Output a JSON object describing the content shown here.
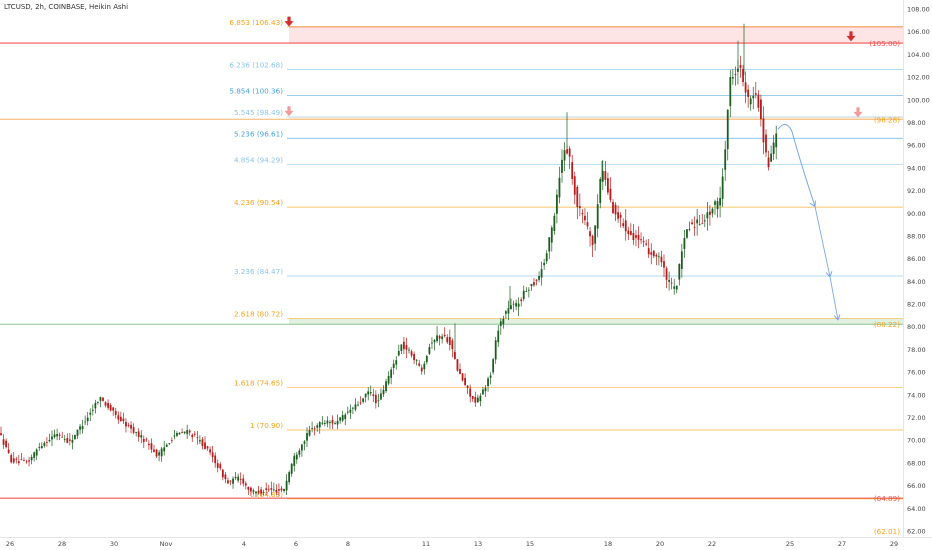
{
  "header": {
    "title": "LTCUSD, 2h, COINBASE, Heikin Ashi"
  },
  "colors": {
    "up": "#26a69a",
    "up_dark": "#1b5e20",
    "down": "#b71c1c",
    "fib_orange": "#f7a21b",
    "fib_blue": "#4aa3df",
    "fib_lightblue": "#8cc4ec",
    "red_level": "#ef5350",
    "projection": "#7aa7e6"
  },
  "chart_data": {
    "type": "candlestick",
    "title": "LTCUSD, 2h, COINBASE, Heikin Ashi",
    "ylim": [
      61.2,
      108.6
    ],
    "y_ticks": [
      "108.00",
      "106.00",
      "104.00",
      "102.00",
      "100.00",
      "98.00",
      "96.00",
      "94.00",
      "92.00",
      "90.00",
      "88.00",
      "86.00",
      "84.00",
      "82.00",
      "80.00",
      "78.00",
      "76.00",
      "74.00",
      "72.00",
      "70.00",
      "68.00",
      "66.00",
      "64.00",
      "62.00"
    ],
    "x_tick_labels": [
      {
        "label": "26",
        "idx": 10
      },
      {
        "label": "28",
        "idx": 62
      },
      {
        "label": "30",
        "idx": 114
      },
      {
        "label": "Nov",
        "idx": 166
      },
      {
        "label": "4",
        "idx": 244
      },
      {
        "label": "6",
        "idx": 296
      },
      {
        "label": "8",
        "idx": 348
      },
      {
        "label": "11",
        "idx": 426
      },
      {
        "label": "13",
        "idx": 478
      },
      {
        "label": "15",
        "idx": 530
      },
      {
        "label": "18",
        "idx": 608
      },
      {
        "label": "20",
        "idx": 660
      },
      {
        "label": "22",
        "idx": 712
      },
      {
        "label": "25",
        "idx": 790
      },
      {
        "label": "27",
        "idx": 842
      },
      {
        "label": "29",
        "idx": 894
      }
    ],
    "candles_anchor_path": [
      [
        0,
        71.0
      ],
      [
        14,
        68.2
      ],
      [
        30,
        68.0
      ],
      [
        42,
        69.5
      ],
      [
        60,
        70.6
      ],
      [
        72,
        69.8
      ],
      [
        92,
        72.3
      ],
      [
        102,
        73.8
      ],
      [
        120,
        72.0
      ],
      [
        136,
        70.8
      ],
      [
        150,
        69.8
      ],
      [
        160,
        68.6
      ],
      [
        176,
        70.4
      ],
      [
        190,
        70.8
      ],
      [
        204,
        69.8
      ],
      [
        216,
        68.4
      ],
      [
        230,
        66.2
      ],
      [
        242,
        66.8
      ],
      [
        250,
        65.8
      ],
      [
        256,
        65.4
      ],
      [
        270,
        65.6
      ],
      [
        286,
        65.6
      ],
      [
        296,
        68.4
      ],
      [
        312,
        70.8
      ],
      [
        324,
        71.6
      ],
      [
        340,
        71.6
      ],
      [
        352,
        72.6
      ],
      [
        364,
        73.4
      ],
      [
        372,
        74.4
      ],
      [
        380,
        73.2
      ],
      [
        392,
        75.8
      ],
      [
        404,
        78.4
      ],
      [
        414,
        77.6
      ],
      [
        424,
        76.2
      ],
      [
        434,
        78.8
      ],
      [
        444,
        79.2
      ],
      [
        452,
        78.8
      ],
      [
        460,
        76.2
      ],
      [
        468,
        74.8
      ],
      [
        478,
        73.2
      ],
      [
        486,
        74.4
      ],
      [
        494,
        76.0
      ],
      [
        500,
        79.8
      ],
      [
        510,
        81.6
      ],
      [
        520,
        82.0
      ],
      [
        530,
        83.4
      ],
      [
        540,
        84.2
      ],
      [
        548,
        86.0
      ],
      [
        556,
        89.4
      ],
      [
        562,
        93.4
      ],
      [
        568,
        96.2
      ],
      [
        572,
        94.8
      ],
      [
        580,
        90.6
      ],
      [
        588,
        89.4
      ],
      [
        596,
        87.0
      ],
      [
        602,
        92.8
      ],
      [
        606,
        93.8
      ],
      [
        614,
        90.6
      ],
      [
        624,
        89.2
      ],
      [
        634,
        88.2
      ],
      [
        644,
        87.4
      ],
      [
        654,
        86.4
      ],
      [
        662,
        86.2
      ],
      [
        670,
        84.0
      ],
      [
        678,
        83.2
      ],
      [
        684,
        86.4
      ],
      [
        690,
        88.8
      ],
      [
        700,
        89.2
      ],
      [
        710,
        89.8
      ],
      [
        718,
        90.8
      ],
      [
        722,
        90.8
      ],
      [
        728,
        96.0
      ],
      [
        732,
        101.6
      ],
      [
        736,
        102.4
      ],
      [
        742,
        103.2
      ],
      [
        746,
        101.2
      ],
      [
        752,
        99.6
      ],
      [
        758,
        100.8
      ],
      [
        762,
        99.2
      ],
      [
        766,
        96.6
      ],
      [
        770,
        94.2
      ],
      [
        774,
        95.0
      ],
      [
        778,
        96.8
      ]
    ],
    "projection": {
      "points": [
        [
          778,
          97.4
        ],
        [
          786,
          98.0
        ],
        [
          792,
          97.2
        ],
        [
          800,
          94.6
        ],
        [
          808,
          92.4
        ],
        [
          815,
          90.6
        ],
        [
          830,
          84.4
        ],
        [
          838,
          80.6
        ]
      ],
      "note": ""
    },
    "levels": [
      {
        "label": "6.853 (106.43)",
        "value": 106.43,
        "type": "fib",
        "color_key": "fib_orange"
      },
      {
        "label": "6.236 (102.68)",
        "value": 102.68,
        "type": "fib",
        "color_key": "fib_lightblue"
      },
      {
        "label": "5.854 (100.36)",
        "value": 100.36,
        "type": "fib",
        "color_key": "fib_blue"
      },
      {
        "label": "5.545 (98.49)",
        "value": 98.49,
        "type": "fib",
        "color_key": "fib_lightblue"
      },
      {
        "label": "5.236 (96.61)",
        "value": 96.61,
        "type": "fib",
        "color_key": "fib_blue"
      },
      {
        "label": "4.854 (94.29)",
        "value": 94.29,
        "type": "fib",
        "color_key": "fib_lightblue"
      },
      {
        "label": "4.236 (90.54)",
        "value": 90.54,
        "type": "fib",
        "color_key": "fib_orange"
      },
      {
        "label": "3.236 (84.47)",
        "value": 84.47,
        "type": "fib",
        "color_key": "fib_lightblue"
      },
      {
        "label": "2.618 (80.72)",
        "value": 80.72,
        "type": "fib",
        "color_key": "fib_orange"
      },
      {
        "label": "1.618 (74.65)",
        "value": 74.65,
        "type": "fib",
        "color_key": "fib_orange"
      },
      {
        "label": "1 (70.90)",
        "value": 70.9,
        "type": "fib",
        "color_key": "fib_orange"
      },
      {
        "label": "0 (64.83)",
        "value": 64.83,
        "type": "fib",
        "color_key": "fib_orange"
      }
    ],
    "right_labels": [
      {
        "label": "(105.00)",
        "value": 105.0,
        "color_key": "red_level"
      },
      {
        "label": "(98.28)",
        "value": 98.28,
        "color_key": "fib_orange"
      },
      {
        "label": "(80.22)",
        "value": 80.22,
        "color_key": "fib_orange"
      },
      {
        "label": "(64.89)",
        "value": 64.89,
        "color_key": "red_level"
      },
      {
        "label": "(62.01)",
        "value": 62.01,
        "color_key": "fib_orange"
      }
    ],
    "zones": [
      {
        "name": "resistance-zone",
        "from": 105.0,
        "to": 106.43,
        "color_key": "red_level"
      },
      {
        "name": "orange-zone",
        "from": 98.28,
        "to": 98.49,
        "color_key": "fib_orange"
      },
      {
        "name": "support-zone",
        "from": 80.22,
        "to": 80.72,
        "color_key": "up"
      }
    ],
    "arrows": [
      {
        "name": "red-arrow-top-left",
        "value": 106.8,
        "idx": 289,
        "style": "dark"
      },
      {
        "name": "red-arrow-top-right",
        "value": 105.5,
        "idx": 851,
        "style": "dark"
      },
      {
        "name": "pink-arrow-left",
        "value": 98.9,
        "idx": 289,
        "style": "light"
      },
      {
        "name": "pink-arrow-right",
        "value": 98.8,
        "idx": 858,
        "style": "light"
      }
    ]
  }
}
